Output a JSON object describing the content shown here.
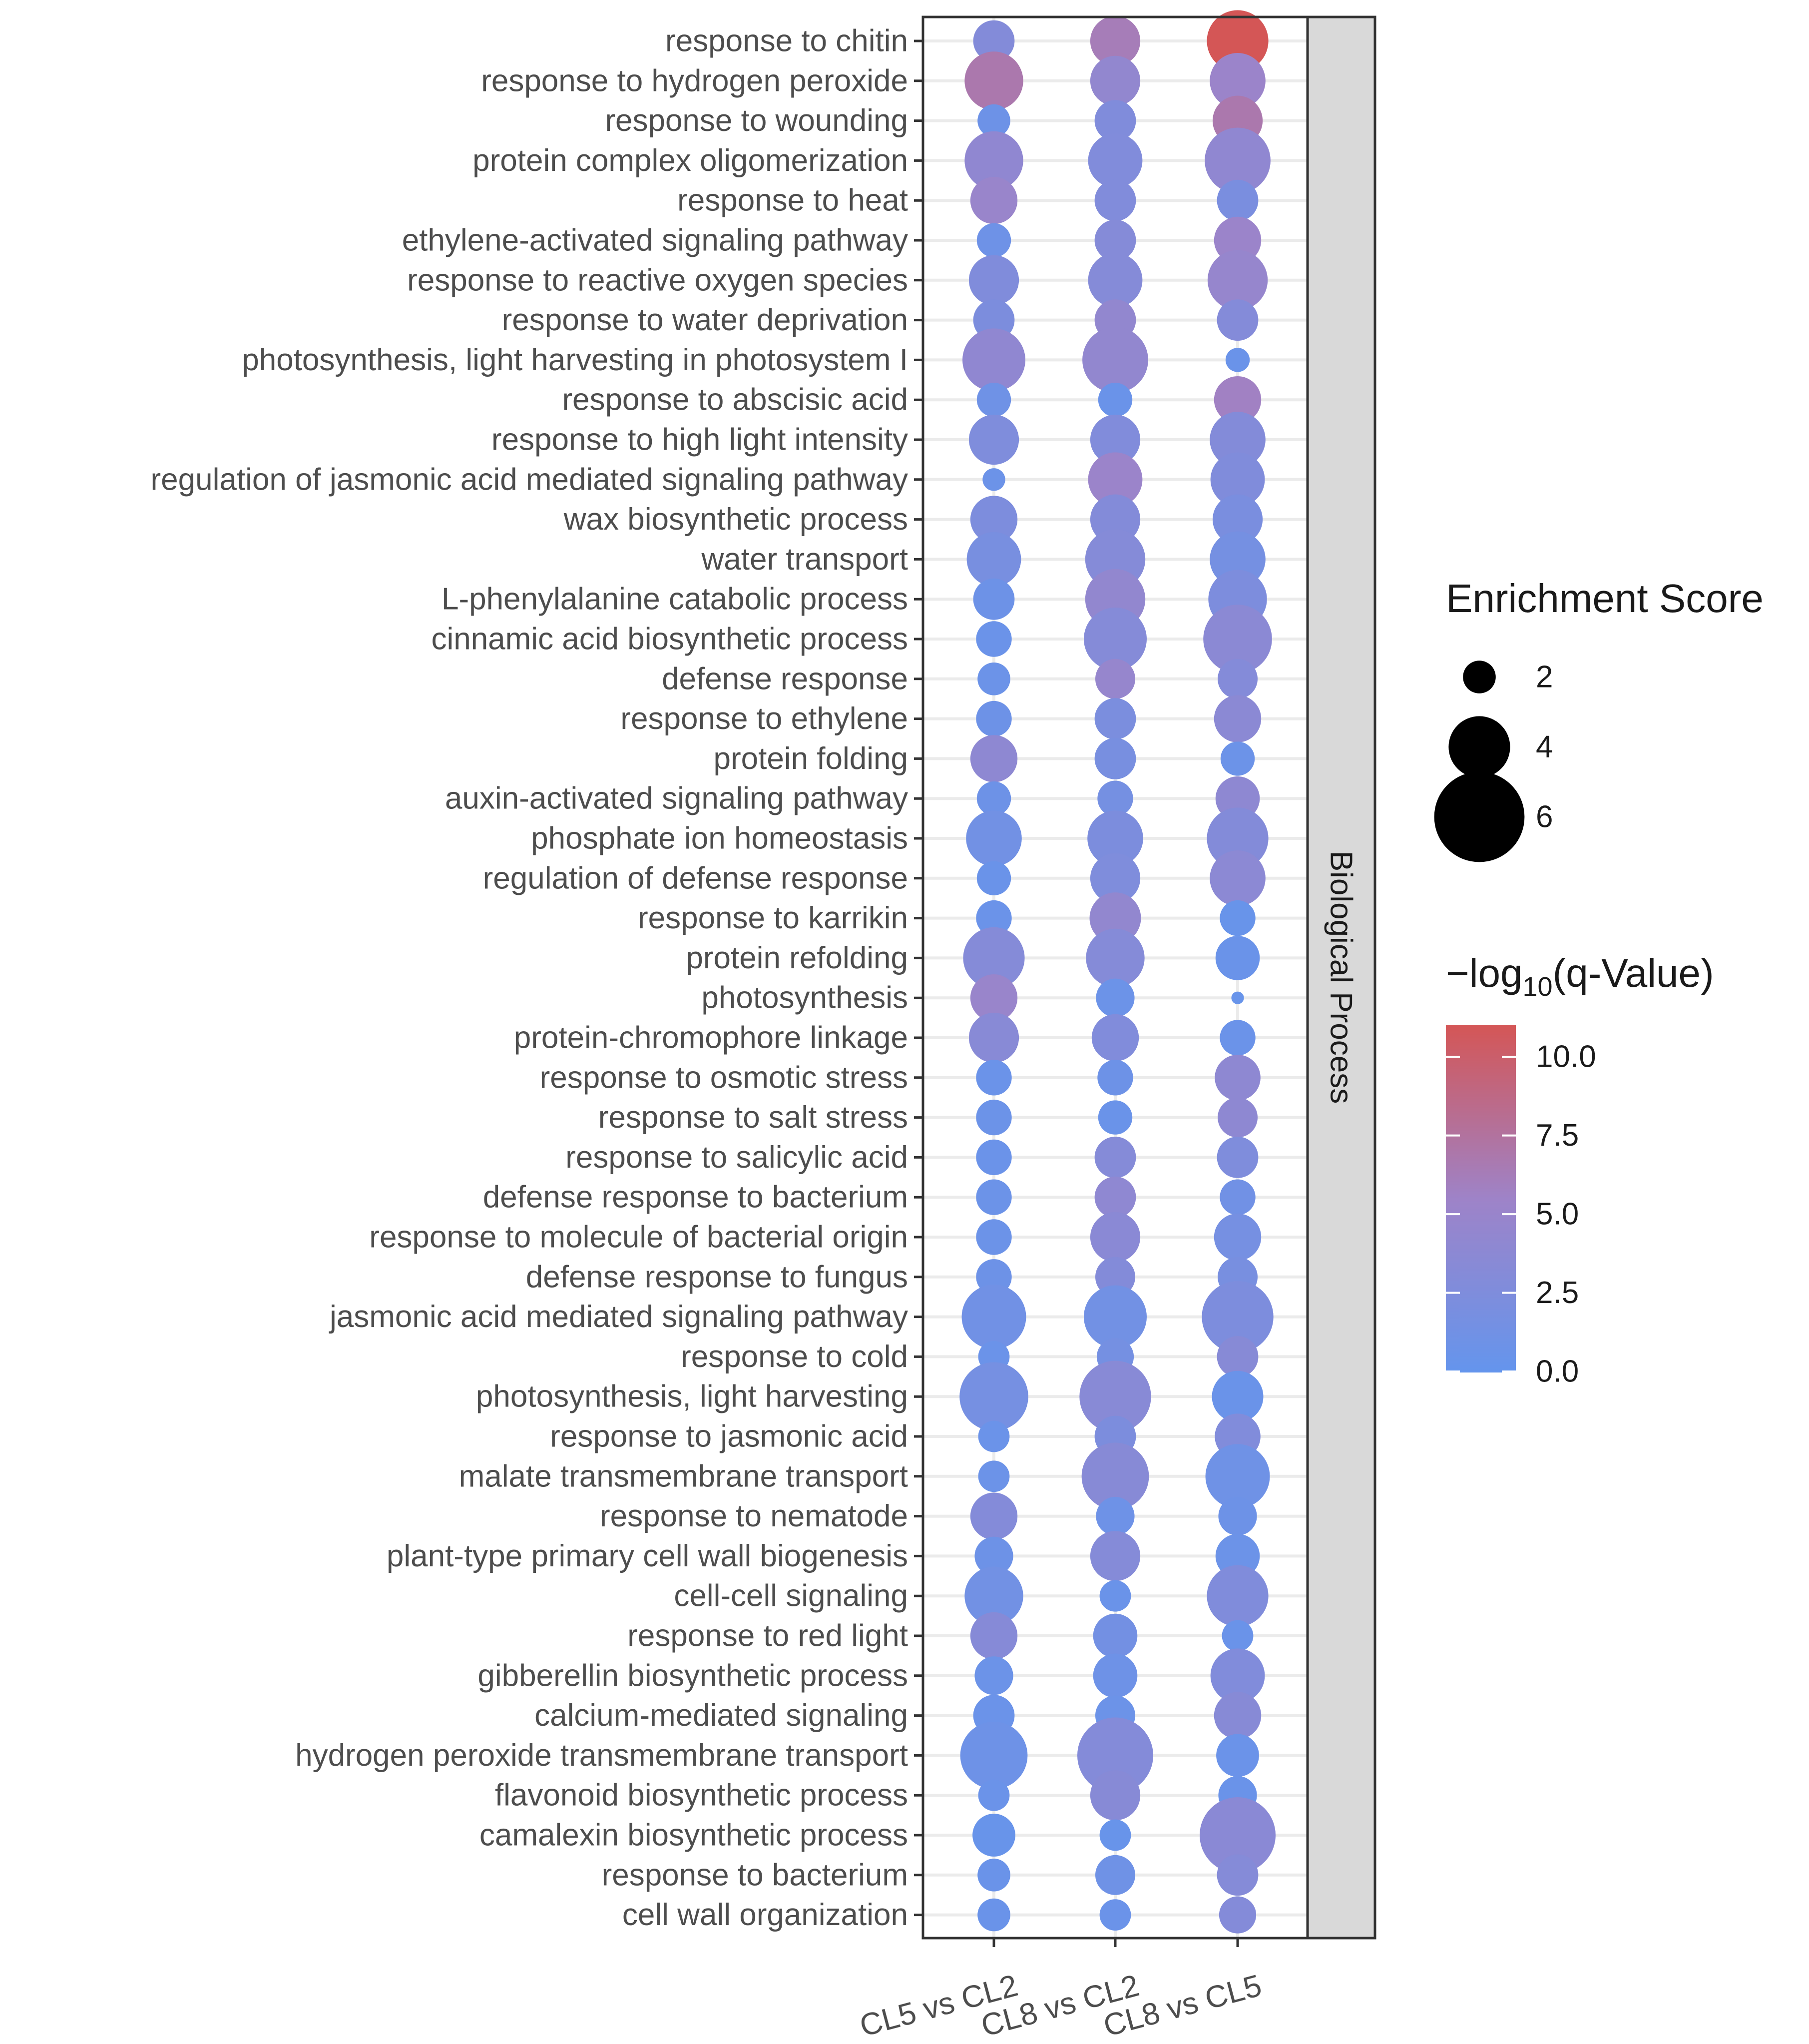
{
  "chart_data": {
    "type": "scatter",
    "facet_label": "Biological Process",
    "x_categories": [
      "CL5 vs CL2",
      "CL8 vs CL2",
      "CL8 vs CL5"
    ],
    "y_categories": [
      "response to chitin",
      "response to hydrogen peroxide",
      "response to wounding",
      "protein complex oligomerization",
      "response to heat",
      "ethylene-activated signaling pathway",
      "response to reactive oxygen species",
      "response to water deprivation",
      "photosynthesis, light harvesting in photosystem I",
      "response to abscisic acid",
      "response to high light intensity",
      "regulation of jasmonic acid mediated signaling pathway",
      "wax biosynthetic process",
      "water transport",
      "L-phenylalanine catabolic process",
      "cinnamic acid biosynthetic process",
      "defense response",
      "response to ethylene",
      "protein folding",
      "auxin-activated signaling pathway",
      "phosphate ion homeostasis",
      "regulation of defense response",
      "response to karrikin",
      "protein refolding",
      "photosynthesis",
      "protein-chromophore linkage",
      "response to osmotic stress",
      "response to salt stress",
      "response to salicylic acid",
      "defense response to bacterium",
      "response to molecule of bacterial origin",
      "defense response to fungus",
      "jasmonic acid mediated signaling pathway",
      "response to cold",
      "photosynthesis, light harvesting",
      "response to jasmonic acid",
      "malate transmembrane transport",
      "response to nematode",
      "plant-type primary cell wall biogenesis",
      "cell-cell signaling",
      "response to red light",
      "gibberellin biosynthetic process",
      "calcium-mediated signaling",
      "hydrogen peroxide transmembrane transport",
      "flavonoid biosynthetic process",
      "camalexin biosynthetic process",
      "response to bacterium",
      "cell wall organization"
    ],
    "enrichment": [
      [
        2.6,
        3.2,
        4.0
      ],
      [
        3.8,
        3.2,
        3.6
      ],
      [
        2.0,
        2.6,
        3.2
      ],
      [
        3.8,
        3.5,
        4.3
      ],
      [
        3.0,
        2.6,
        2.6
      ],
      [
        2.1,
        2.6,
        3.0
      ],
      [
        3.2,
        3.5,
        3.9
      ],
      [
        2.6,
        2.6,
        2.6
      ],
      [
        4.1,
        4.3,
        1.4
      ],
      [
        2.1,
        2.1,
        3.0
      ],
      [
        3.2,
        3.2,
        3.6
      ],
      [
        1.3,
        3.5,
        3.5
      ],
      [
        3.0,
        3.2,
        3.2
      ],
      [
        3.5,
        3.9,
        3.6
      ],
      [
        2.6,
        3.9,
        3.8
      ],
      [
        2.2,
        4.1,
        4.5
      ],
      [
        2.0,
        2.5,
        2.5
      ],
      [
        2.2,
        2.6,
        3.0
      ],
      [
        3.0,
        2.6,
        2.1
      ],
      [
        2.1,
        2.2,
        2.8
      ],
      [
        3.6,
        3.6,
        4.0
      ],
      [
        2.1,
        3.2,
        3.6
      ],
      [
        2.2,
        3.3,
        2.2
      ],
      [
        4.0,
        3.8,
        2.8
      ],
      [
        3.0,
        2.4,
        0.6
      ],
      [
        3.2,
        3.0,
        2.2
      ],
      [
        2.2,
        2.2,
        2.9
      ],
      [
        2.2,
        2.1,
        2.5
      ],
      [
        2.2,
        2.6,
        2.6
      ],
      [
        2.2,
        2.6,
        2.2
      ],
      [
        2.2,
        3.2,
        3.0
      ],
      [
        2.2,
        2.5,
        2.5
      ],
      [
        4.2,
        4.1,
        4.7
      ],
      [
        1.9,
        2.3,
        2.6
      ],
      [
        4.5,
        4.7,
        3.3
      ],
      [
        1.9,
        2.6,
        2.9
      ],
      [
        1.9,
        4.4,
        4.2
      ],
      [
        3.0,
        2.4,
        2.4
      ],
      [
        2.4,
        3.2,
        2.8
      ],
      [
        3.8,
        1.9,
        4.0
      ],
      [
        3.0,
        2.8,
        1.9
      ],
      [
        2.4,
        2.8,
        3.5
      ],
      [
        2.6,
        2.5,
        3.0
      ],
      [
        4.4,
        5.0,
        2.7
      ],
      [
        1.9,
        3.2,
        2.4
      ],
      [
        2.7,
        1.9,
        5.0
      ],
      [
        2.0,
        2.5,
        2.6
      ],
      [
        2.0,
        1.9,
        2.3
      ]
    ],
    "neg_log10_q": [
      [
        2.8,
        6.0,
        10.5
      ],
      [
        6.5,
        4.2,
        5.0
      ],
      [
        0.8,
        2.5,
        6.5
      ],
      [
        4.0,
        2.6,
        4.0
      ],
      [
        4.8,
        2.6,
        2.0
      ],
      [
        0.9,
        3.0,
        5.0
      ],
      [
        2.5,
        3.0,
        4.5
      ],
      [
        2.2,
        4.2,
        2.9
      ],
      [
        4.0,
        4.2,
        0.5
      ],
      [
        1.0,
        0.5,
        5.5
      ],
      [
        2.4,
        2.6,
        2.8
      ],
      [
        0.7,
        5.0,
        2.5
      ],
      [
        2.3,
        2.8,
        2.0
      ],
      [
        1.8,
        3.0,
        1.5
      ],
      [
        0.8,
        4.2,
        2.3
      ],
      [
        0.6,
        3.0,
        3.5
      ],
      [
        0.7,
        4.5,
        2.9
      ],
      [
        0.8,
        2.1,
        3.5
      ],
      [
        3.8,
        1.8,
        0.7
      ],
      [
        0.8,
        1.5,
        3.8
      ],
      [
        1.3,
        2.2,
        2.8
      ],
      [
        0.5,
        2.4,
        3.6
      ],
      [
        0.6,
        4.2,
        0.4
      ],
      [
        3.0,
        3.0,
        0.5
      ],
      [
        4.8,
        0.7,
        0.4
      ],
      [
        3.3,
        2.6,
        0.6
      ],
      [
        0.6,
        0.8,
        3.8
      ],
      [
        0.7,
        0.5,
        3.8
      ],
      [
        0.6,
        3.0,
        2.4
      ],
      [
        0.7,
        3.9,
        1.2
      ],
      [
        0.7,
        3.4,
        1.6
      ],
      [
        0.8,
        2.8,
        1.8
      ],
      [
        1.2,
        1.3,
        2.3
      ],
      [
        0.6,
        1.5,
        3.2
      ],
      [
        1.6,
        3.3,
        0.5
      ],
      [
        0.6,
        2.2,
        2.6
      ],
      [
        0.7,
        3.2,
        1.0
      ],
      [
        2.9,
        0.9,
        0.8
      ],
      [
        0.8,
        3.0,
        0.7
      ],
      [
        1.3,
        0.5,
        2.5
      ],
      [
        3.1,
        1.4,
        0.5
      ],
      [
        0.7,
        0.9,
        2.6
      ],
      [
        0.6,
        0.7,
        3.2
      ],
      [
        0.9,
        2.9,
        0.6
      ],
      [
        0.6,
        3.2,
        0.5
      ],
      [
        0.4,
        0.4,
        3.4
      ],
      [
        0.5,
        1.0,
        3.0
      ],
      [
        0.5,
        0.6,
        2.9
      ]
    ],
    "size_legend": {
      "title": "Enrichment Score",
      "values": [
        "2",
        "4",
        "6"
      ]
    },
    "color_legend": {
      "title_prefix": "−log",
      "title_sub": "10",
      "title_suffix": "(q-Value)",
      "ticks": [
        "10.0",
        "7.5",
        "5.0",
        "2.5",
        "0.0"
      ],
      "low_color": "#6495ED",
      "mid_color": "#9E83C8",
      "high_color": "#D45656",
      "range": [
        0,
        10.5
      ]
    }
  }
}
